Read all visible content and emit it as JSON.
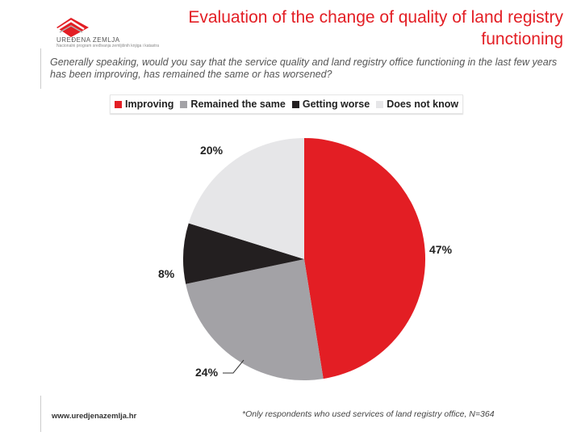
{
  "logo": {
    "name": "UREĐENA ZEMLJA",
    "tagline": "Nacionalni program sređivanja zemljišnih knjiga i katastra"
  },
  "title": "Evaluation of the change of quality of land registry functioning",
  "question": "Generally speaking, would you say that the service quality and land registry office functioning in the last few years has been improving, has remained the same or has worsened?",
  "chart_data": {
    "type": "pie",
    "title": "",
    "categories": [
      "Improving",
      "Remained the same",
      "Getting worse",
      "Does not know"
    ],
    "values": [
      47,
      24,
      8,
      20
    ],
    "labels": [
      "47%",
      "24%",
      "8%",
      "20%"
    ],
    "colors": [
      "#e31e24",
      "#a3a2a6",
      "#231f20",
      "#e6e6e8"
    ],
    "legend_position": "top"
  },
  "footer": {
    "website": "www.uredjenazemlja.hr",
    "note": "*Only respondents who used services of land registry office, N=364"
  }
}
